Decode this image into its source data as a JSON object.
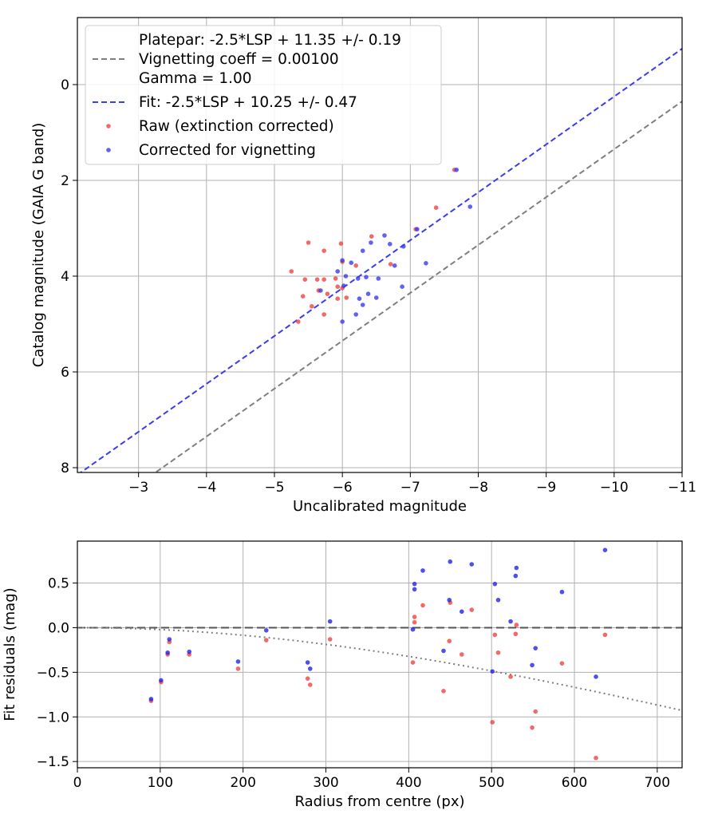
{
  "chart_data": [
    {
      "type": "scatter",
      "xlabel": "Uncalibrated magnitude",
      "ylabel": "Catalog magnitude (GAIA G band)",
      "xlim": [
        -2.1,
        -11
      ],
      "ylim": [
        8.1,
        -1.4
      ],
      "x_inverted": true,
      "y_inverted": true,
      "grid": true,
      "legend_position": "top-left",
      "xticks": [
        -3,
        -4,
        -5,
        -6,
        -7,
        -8,
        -9,
        -10,
        -11
      ],
      "xtick_labels": [
        "−3",
        "−4",
        "−5",
        "−6",
        "−7",
        "−8",
        "−9",
        "−10",
        "−11"
      ],
      "yticks": [
        0,
        2,
        4,
        6,
        8
      ],
      "ytick_labels": [
        "0",
        "2",
        "4",
        "6",
        "8"
      ],
      "legend": [
        {
          "kind": "text",
          "text": "Platepar: -2.5*LSP + 11.35 +/- 0.19"
        },
        {
          "kind": "line",
          "text": "Vignetting coeff = 0.00100",
          "color": "#7f7f7f",
          "dash": "7,4"
        },
        {
          "kind": "text",
          "text": "Gamma = 1.00"
        },
        {
          "kind": "line",
          "text": "Fit: -2.5*LSP + 10.25 +/- 0.47",
          "color": "#3b3bf0",
          "dash": "7,4"
        },
        {
          "kind": "dot",
          "text": "Raw (extinction corrected)",
          "color": "#ee4444"
        },
        {
          "kind": "dot",
          "text": "Corrected for vignetting",
          "color": "#3b3bee"
        }
      ],
      "lines": [
        {
          "name": "platepar",
          "slope": 1,
          "intercept": 11.35,
          "color": "#7f7f7f",
          "dash": "7,4"
        },
        {
          "name": "fit",
          "slope": 1,
          "intercept": 10.25,
          "color": "#3b3bf0",
          "dash": "7,4"
        }
      ],
      "series": [
        {
          "name": "Raw (extinction corrected)",
          "color": "#ee4444",
          "points": [
            [
              -7.65,
              1.78
            ],
            [
              -7.38,
              2.57
            ],
            [
              -7.08,
              3.02
            ],
            [
              -6.43,
              3.17
            ],
            [
              -5.5,
              3.3
            ],
            [
              -5.98,
              3.32
            ],
            [
              -5.73,
              3.47
            ],
            [
              -6.0,
              3.7
            ],
            [
              -6.2,
              3.78
            ],
            [
              -6.71,
              3.75
            ],
            [
              -5.25,
              3.9
            ],
            [
              -5.9,
              4.05
            ],
            [
              -5.45,
              4.07
            ],
            [
              -5.63,
              4.07
            ],
            [
              -5.73,
              4.07
            ],
            [
              -5.93,
              4.22
            ],
            [
              -6.0,
              4.25
            ],
            [
              -5.65,
              4.3
            ],
            [
              -5.78,
              4.37
            ],
            [
              -5.42,
              4.42
            ],
            [
              -5.93,
              4.47
            ],
            [
              -6.06,
              4.45
            ],
            [
              -5.55,
              4.63
            ],
            [
              -5.73,
              4.8
            ],
            [
              -5.35,
              4.95
            ]
          ]
        },
        {
          "name": "Corrected for vignetting",
          "color": "#3b3bee",
          "points": [
            [
              -7.68,
              1.78
            ],
            [
              -7.88,
              2.55
            ],
            [
              -7.1,
              3.02
            ],
            [
              -6.62,
              3.15
            ],
            [
              -6.42,
              3.3
            ],
            [
              -6.7,
              3.33
            ],
            [
              -6.9,
              3.38
            ],
            [
              -6.3,
              3.47
            ],
            [
              -6.13,
              3.72
            ],
            [
              -6.0,
              3.67
            ],
            [
              -6.77,
              3.78
            ],
            [
              -7.23,
              3.73
            ],
            [
              -5.93,
              3.9
            ],
            [
              -6.05,
              4.0
            ],
            [
              -6.35,
              4.02
            ],
            [
              -6.23,
              4.05
            ],
            [
              -6.53,
              4.05
            ],
            [
              -6.02,
              4.2
            ],
            [
              -6.88,
              4.22
            ],
            [
              -5.68,
              4.3
            ],
            [
              -6.38,
              4.37
            ],
            [
              -6.25,
              4.47
            ],
            [
              -6.5,
              4.45
            ],
            [
              -6.3,
              4.6
            ],
            [
              -6.2,
              4.8
            ],
            [
              -6.0,
              4.95
            ]
          ]
        }
      ]
    },
    {
      "type": "scatter",
      "xlabel": "Radius from centre (px)",
      "ylabel": "Fit residuals (mag)",
      "xlim": [
        0,
        730
      ],
      "ylim": [
        -1.57,
        0.97
      ],
      "grid": true,
      "xticks": [
        0,
        100,
        200,
        300,
        400,
        500,
        600,
        700
      ],
      "xtick_labels": [
        "0",
        "100",
        "200",
        "300",
        "400",
        "500",
        "600",
        "700"
      ],
      "yticks": [
        -1.5,
        -1.0,
        -0.5,
        0.0,
        0.5
      ],
      "ytick_labels": [
        "−1.5",
        "−1.0",
        "−0.5",
        "0.0",
        "0.5"
      ],
      "zero_line": {
        "y": 0,
        "color": "#555555",
        "dash": "10,5"
      },
      "curve": {
        "coeff": 0.001,
        "color": "#7f7f7f",
        "dash": "2,4"
      },
      "series": [
        {
          "name": "Raw (extinction corrected)",
          "color": "#ee4444",
          "points": [
            [
              89,
              -0.82
            ],
            [
              101,
              -0.61
            ],
            [
              109,
              -0.3
            ],
            [
              111,
              -0.16
            ],
            [
              135,
              -0.3
            ],
            [
              194,
              -0.46
            ],
            [
              228,
              -0.14
            ],
            [
              278,
              -0.57
            ],
            [
              281,
              -0.64
            ],
            [
              305,
              -0.13
            ],
            [
              405,
              -0.39
            ],
            [
              407,
              0.12
            ],
            [
              407,
              0.06
            ],
            [
              417,
              0.25
            ],
            [
              442,
              -0.71
            ],
            [
              449,
              -0.15
            ],
            [
              450,
              0.28
            ],
            [
              464,
              -0.3
            ],
            [
              476,
              0.2
            ],
            [
              501,
              -1.06
            ],
            [
              504,
              -0.08
            ],
            [
              508,
              -0.28
            ],
            [
              523,
              -0.55
            ],
            [
              529,
              -0.07
            ],
            [
              530,
              0.03
            ],
            [
              549,
              -1.12
            ],
            [
              553,
              -0.94
            ],
            [
              585,
              -0.4
            ],
            [
              626,
              -1.46
            ],
            [
              637,
              -0.08
            ]
          ]
        },
        {
          "name": "Corrected for vignetting",
          "color": "#2222ee",
          "points": [
            [
              89,
              -0.8
            ],
            [
              101,
              -0.59
            ],
            [
              109,
              -0.28
            ],
            [
              111,
              -0.13
            ],
            [
              135,
              -0.27
            ],
            [
              194,
              -0.38
            ],
            [
              228,
              -0.03
            ],
            [
              278,
              -0.39
            ],
            [
              281,
              -0.46
            ],
            [
              305,
              0.07
            ],
            [
              405,
              -0.02
            ],
            [
              407,
              0.49
            ],
            [
              407,
              0.43
            ],
            [
              417,
              0.64
            ],
            [
              442,
              -0.26
            ],
            [
              449,
              0.31
            ],
            [
              450,
              0.74
            ],
            [
              464,
              0.18
            ],
            [
              476,
              0.71
            ],
            [
              501,
              -0.49
            ],
            [
              504,
              0.49
            ],
            [
              508,
              0.31
            ],
            [
              523,
              0.07
            ],
            [
              529,
              0.58
            ],
            [
              530,
              0.67
            ],
            [
              549,
              -0.42
            ],
            [
              553,
              -0.23
            ],
            [
              585,
              0.4
            ],
            [
              626,
              -0.55
            ],
            [
              637,
              0.87
            ]
          ]
        }
      ]
    }
  ]
}
